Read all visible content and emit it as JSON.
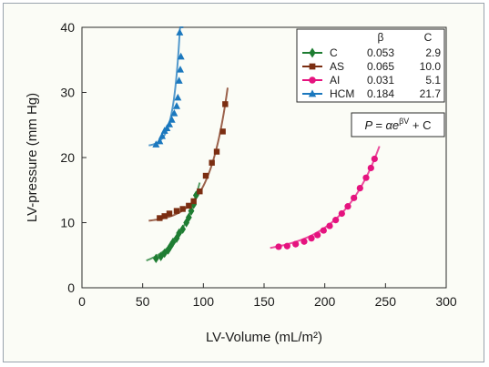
{
  "chart_data": {
    "type": "scatter",
    "xlabel": "LV-Volume (mL/m²)",
    "ylabel": "LV-pressure (mm Hg)",
    "xlim": [
      0,
      300
    ],
    "ylim": [
      0,
      40
    ],
    "xticks": [
      0,
      50,
      100,
      150,
      200,
      250,
      300
    ],
    "yticks": [
      0,
      10,
      20,
      30,
      40
    ],
    "grid": false,
    "legend_placement": "top-right",
    "legend_headers": [
      "β",
      "C"
    ],
    "formula": "P = αe^βV + C",
    "formula_parts": {
      "lhs": "P = αe",
      "exp": "βV",
      "rhs": " + C"
    },
    "series": [
      {
        "name": "C",
        "beta": "0.053",
        "c": "2.9",
        "color": "#1e7d32",
        "marker": "diamond",
        "curve_range": [
          53,
          97
        ],
        "points": [
          [
            61,
            4.5
          ],
          [
            65,
            4.8
          ],
          [
            68,
            5.3
          ],
          [
            71,
            5.8
          ],
          [
            73,
            6.4
          ],
          [
            75,
            7.0
          ],
          [
            78,
            7.6
          ],
          [
            80,
            8.4
          ],
          [
            83,
            9.0
          ],
          [
            86,
            10.0
          ],
          [
            88,
            10.8
          ],
          [
            90,
            11.8
          ],
          [
            92,
            12.8
          ],
          [
            94,
            14.2
          ]
        ]
      },
      {
        "name": "AS",
        "beta": "0.065",
        "c": "10.0",
        "color": "#7b2e12",
        "marker": "square",
        "curve_range": [
          55,
          120
        ],
        "points": [
          [
            64,
            10.7
          ],
          [
            68,
            11.0
          ],
          [
            72,
            11.4
          ],
          [
            78,
            11.8
          ],
          [
            83,
            12.1
          ],
          [
            88,
            12.6
          ],
          [
            92,
            13.3
          ],
          [
            97,
            14.8
          ],
          [
            102,
            17.2
          ],
          [
            107,
            19.2
          ],
          [
            111,
            20.9
          ],
          [
            116,
            24.0
          ],
          [
            118,
            28.2
          ]
        ]
      },
      {
        "name": "AI",
        "beta": "0.031",
        "c": "5.1",
        "color": "#e5137f",
        "marker": "circle",
        "curve_range": [
          155,
          245
        ],
        "points": [
          [
            162,
            6.3
          ],
          [
            169,
            6.4
          ],
          [
            176,
            6.7
          ],
          [
            183,
            7.1
          ],
          [
            189,
            7.6
          ],
          [
            194,
            8.1
          ],
          [
            199,
            8.8
          ],
          [
            204,
            9.5
          ],
          [
            209,
            10.4
          ],
          [
            214,
            11.4
          ],
          [
            219,
            12.5
          ],
          [
            224,
            13.8
          ],
          [
            229,
            15.3
          ],
          [
            234,
            16.9
          ],
          [
            238,
            18.4
          ],
          [
            241,
            19.8
          ]
        ]
      },
      {
        "name": "HCM",
        "beta": "0.184",
        "c": "21.7",
        "color": "#1b78be",
        "marker": "triangle",
        "curve_range": [
          55,
          83.5
        ],
        "points": [
          [
            61,
            22.0
          ],
          [
            64,
            22.5
          ],
          [
            66,
            23.3
          ],
          [
            68,
            24.1
          ],
          [
            70,
            24.5
          ],
          [
            72,
            25.1
          ],
          [
            74,
            25.8
          ],
          [
            76,
            26.8
          ],
          [
            78,
            27.9
          ],
          [
            79,
            29.2
          ],
          [
            80,
            31.8
          ],
          [
            81,
            33.5
          ],
          [
            81.5,
            35.5
          ],
          [
            80.5,
            39.2
          ]
        ]
      }
    ]
  }
}
